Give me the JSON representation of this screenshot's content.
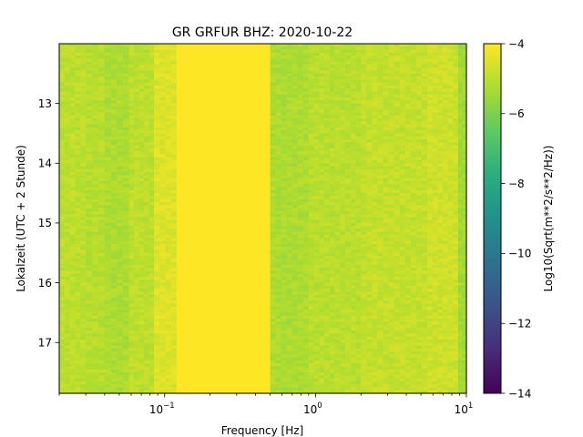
{
  "chart_data": {
    "type": "heatmap",
    "title": "GR GRFUR  BHZ: 2020-10-22",
    "xlabel": "Frequency [Hz]",
    "ylabel": "Lokalzeit (UTC + 2 Stunde)",
    "xscale": "log",
    "xlim": [
      0.02,
      10
    ],
    "ylim": [
      17.85,
      12.0
    ],
    "y_inverted": true,
    "xticks": [
      {
        "value": 0.1,
        "label": "10",
        "exp": "−1"
      },
      {
        "value": 1,
        "label": "10",
        "exp": "0"
      },
      {
        "value": 10,
        "label": "10",
        "exp": "1"
      }
    ],
    "yticks": [
      {
        "value": 13,
        "label": "13"
      },
      {
        "value": 14,
        "label": "14"
      },
      {
        "value": 15,
        "label": "15"
      },
      {
        "value": 16,
        "label": "16"
      },
      {
        "value": 17,
        "label": "17"
      }
    ],
    "colorbar": {
      "label": "Log10(Sqrt(m**2/s**2/Hz))",
      "range": [
        -14,
        -4
      ],
      "colormap": "viridis",
      "ticks": [
        {
          "value": -4,
          "label": "−4"
        },
        {
          "value": -6,
          "label": "−6"
        },
        {
          "value": -8,
          "label": "−8"
        },
        {
          "value": -10,
          "label": "−10"
        },
        {
          "value": -12,
          "label": "−12"
        },
        {
          "value": -14,
          "label": "−14"
        }
      ]
    },
    "frequency_bands": [
      {
        "f_min": 0.02,
        "f_max": 0.03,
        "value": -5.0
      },
      {
        "f_min": 0.03,
        "f_max": 0.04,
        "value": -5.1
      },
      {
        "f_min": 0.04,
        "f_max": 0.058,
        "value": -5.25
      },
      {
        "f_min": 0.058,
        "f_max": 0.085,
        "value": -5.0
      },
      {
        "f_min": 0.085,
        "f_max": 0.12,
        "value": -4.5
      },
      {
        "f_min": 0.12,
        "f_max": 0.5,
        "value": -4.0
      },
      {
        "f_min": 0.5,
        "f_max": 0.9,
        "value": -5.25
      },
      {
        "f_min": 0.9,
        "f_max": 2.0,
        "value": -5.05
      },
      {
        "f_min": 2.0,
        "f_max": 5.5,
        "value": -4.9
      },
      {
        "f_min": 5.5,
        "f_max": 8.8,
        "value": -4.75
      },
      {
        "f_min": 8.8,
        "f_max": 10,
        "value": -5.4
      }
    ],
    "time_step_hours": 0.05
  }
}
